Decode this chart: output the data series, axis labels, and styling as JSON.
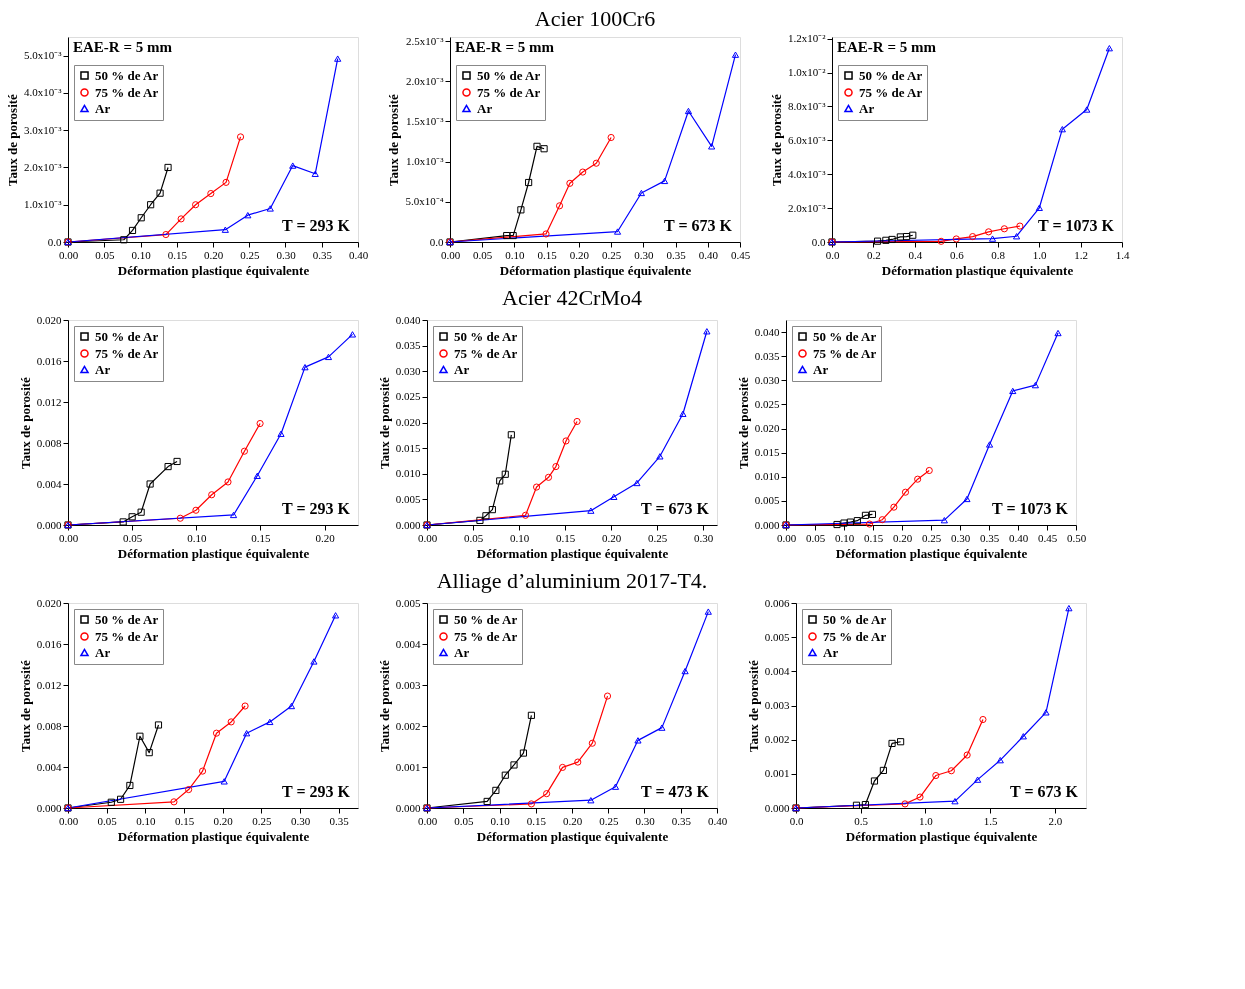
{
  "chart_data": [
    {
      "type": "line",
      "xlabel": "Déformation plastique équivalente",
      "ylabel": "Taux de porosité",
      "legend": "top left",
      "annotations": [
        "EAE-R = 5 mm",
        "T = 293 K"
      ],
      "xlim": [
        0,
        0.4
      ],
      "ylim": [
        0,
        0.0055
      ],
      "xticks": [
        {
          "value": 0,
          "label": "0.00"
        },
        0.05,
        {
          "value": 0.1,
          "label": "0.10"
        },
        0.15,
        {
          "value": 0.2,
          "label": "0.20"
        },
        0.25,
        {
          "value": 0.3,
          "label": "0.30"
        },
        0.35,
        {
          "value": 0.4,
          "label": "0.40"
        }
      ],
      "yticks": [
        {
          "value": 0,
          "label": "0.0"
        },
        {
          "value": 0.001,
          "label": "1.0x10⁻³"
        },
        {
          "value": 0.002,
          "label": "2.0x10⁻³"
        },
        {
          "value": 0.003,
          "label": "3.0x10⁻³"
        },
        {
          "value": 0.004,
          "label": "4.0x10⁻³"
        },
        {
          "value": 0.005,
          "label": "5.0x10⁻³"
        }
      ],
      "series": [
        {
          "name": "50 % de Ar",
          "color": "#000000",
          "marker": "square",
          "x": [
            0,
            0.077,
            0.089,
            0.101,
            0.114,
            0.127,
            0.138
          ],
          "values": [
            0,
            6e-05,
            0.00031,
            0.00065,
            0.001,
            0.00131,
            0.002
          ]
        },
        {
          "name": "75 % de Ar",
          "color": "#ff0000",
          "marker": "circle",
          "x": [
            0,
            0.135,
            0.156,
            0.176,
            0.197,
            0.218,
            0.238
          ],
          "values": [
            0,
            0.0002,
            0.00062,
            0.001,
            0.0013,
            0.0016,
            0.00282
          ]
        },
        {
          "name": "Ar",
          "color": "#0000ff",
          "marker": "triangle",
          "x": [
            0,
            0.217,
            0.248,
            0.279,
            0.31,
            0.341,
            0.372
          ],
          "values": [
            0,
            0.00033,
            0.00072,
            0.0009,
            0.00205,
            0.00183,
            0.00492
          ]
        }
      ]
    },
    {
      "type": "line",
      "title": "Acier 100Cr6",
      "xlabel": "Déformation plastique équivalente",
      "ylabel": "Taux de porosité",
      "legend": "top left",
      "annotations": [
        "EAE-R = 5 mm",
        "T = 673 K"
      ],
      "xlim": [
        0,
        0.45
      ],
      "ylim": [
        0,
        0.00255
      ],
      "xticks": [
        {
          "value": 0,
          "label": "0.00"
        },
        0.05,
        {
          "value": 0.1,
          "label": "0.10"
        },
        0.15,
        {
          "value": 0.2,
          "label": "0.20"
        },
        0.25,
        {
          "value": 0.3,
          "label": "0.30"
        },
        0.35,
        {
          "value": 0.4,
          "label": "0.40"
        },
        0.45
      ],
      "yticks": [
        {
          "value": 0,
          "label": "0.0"
        },
        {
          "value": 0.0005,
          "label": "5.0x10⁻⁴"
        },
        {
          "value": 0.001,
          "label": "1.0x10⁻³"
        },
        {
          "value": 0.0015,
          "label": "1.5x10⁻³"
        },
        {
          "value": 0.002,
          "label": "2.0x10⁻³"
        },
        {
          "value": 0.0025,
          "label": "2.5x10⁻³"
        }
      ],
      "series": [
        {
          "name": "50 % de Ar",
          "color": "#000000",
          "marker": "square",
          "x": [
            0,
            0.088,
            0.098,
            0.11,
            0.122,
            0.135,
            0.146
          ],
          "values": [
            0,
            8e-05,
            8e-05,
            0.0004,
            0.00074,
            0.00119,
            0.00116
          ]
        },
        {
          "name": "75 % de Ar",
          "color": "#ff0000",
          "marker": "circle",
          "x": [
            0,
            0.149,
            0.17,
            0.186,
            0.206,
            0.227,
            0.25
          ],
          "values": [
            0,
            0.0001,
            0.00045,
            0.00073,
            0.00087,
            0.00098,
            0.0013
          ]
        },
        {
          "name": "Ar",
          "color": "#0000ff",
          "marker": "triangle",
          "x": [
            0,
            0.26,
            0.297,
            0.333,
            0.37,
            0.406,
            0.443
          ],
          "values": [
            0,
            0.00013,
            0.00061,
            0.00076,
            0.00163,
            0.00119,
            0.00233
          ]
        }
      ]
    },
    {
      "type": "line",
      "xlabel": "Déformation plastique équivalente",
      "ylabel": "Taux de porosité",
      "legend": "top left",
      "annotations": [
        "EAE-R = 5 mm",
        "T = 1073 K"
      ],
      "xlim": [
        0,
        1.4
      ],
      "ylim": [
        0,
        0.0121
      ],
      "xticks": [
        {
          "value": 0,
          "label": "0.0"
        },
        0.2,
        0.4,
        0.6,
        0.8,
        {
          "value": 1.0,
          "label": "1.0"
        },
        1.2,
        1.4
      ],
      "yticks": [
        {
          "value": 0,
          "label": "0.0"
        },
        {
          "value": 0.002,
          "label": "2.0x10⁻³"
        },
        {
          "value": 0.004,
          "label": "4.0x10⁻³"
        },
        {
          "value": 0.006,
          "label": "6.0x10⁻³"
        },
        {
          "value": 0.008,
          "label": "8.0x10⁻³"
        },
        {
          "value": 0.01,
          "label": "1.0x10⁻²"
        },
        {
          "value": 0.012,
          "label": "1.2x10⁻²"
        }
      ],
      "series": [
        {
          "name": "50 % de Ar",
          "color": "#000000",
          "marker": "square",
          "x": [
            0,
            0.22,
            0.26,
            0.29,
            0.33,
            0.36,
            0.39
          ],
          "values": [
            0,
            5e-05,
            0.0001,
            0.00015,
            0.0003,
            0.00032,
            0.0004
          ]
        },
        {
          "name": "75 % de Ar",
          "color": "#ff0000",
          "marker": "circle",
          "x": [
            0,
            0.527,
            0.6,
            0.679,
            0.756,
            0.832,
            0.907
          ],
          "values": [
            0,
            4e-05,
            0.00018,
            0.00032,
            0.0006,
            0.00078,
            0.00094
          ]
        },
        {
          "name": "Ar",
          "color": "#0000ff",
          "marker": "triangle",
          "x": [
            0,
            0.775,
            0.891,
            1.001,
            1.112,
            1.23,
            1.339
          ],
          "values": [
            0,
            0.0002,
            0.00034,
            0.00202,
            0.00666,
            0.00782,
            0.01144
          ]
        }
      ]
    },
    {
      "type": "line",
      "xlabel": "Déformation plastique équivalente",
      "ylabel": "Taux de porosité",
      "legend": "top left",
      "annotations": [
        "T = 293 K"
      ],
      "xlim": [
        0,
        0.226
      ],
      "ylim": [
        0,
        0.02
      ],
      "xticks": [
        {
          "value": 0,
          "label": "0.00"
        },
        0.05,
        {
          "value": 0.1,
          "label": "0.10"
        },
        0.15,
        {
          "value": 0.2,
          "label": "0.20"
        }
      ],
      "yticks": [
        {
          "value": 0,
          "label": "0.000"
        },
        0.004,
        0.008,
        0.012,
        0.016,
        {
          "value": 0.02,
          "label": "0.020"
        }
      ],
      "series": [
        {
          "name": "50 % de Ar",
          "color": "#000000",
          "marker": "square",
          "x": [
            0,
            0.043,
            0.05,
            0.057,
            0.064,
            0.078,
            0.085
          ],
          "values": [
            0,
            0.0003,
            0.0008,
            0.00125,
            0.004,
            0.0057,
            0.0062
          ]
        },
        {
          "name": "75 % de Ar",
          "color": "#ff0000",
          "marker": "circle",
          "x": [
            0,
            0.0875,
            0.0997,
            0.112,
            0.1247,
            0.1375,
            0.1497
          ],
          "values": [
            0,
            0.00066,
            0.00144,
            0.00295,
            0.0042,
            0.0072,
            0.0099
          ]
        },
        {
          "name": "Ar",
          "color": "#0000ff",
          "marker": "triangle",
          "x": [
            0,
            0.129,
            0.1475,
            0.166,
            0.1847,
            0.203,
            0.2217
          ],
          "values": [
            0,
            0.00098,
            0.0048,
            0.0089,
            0.0154,
            0.0164,
            0.0186
          ]
        }
      ]
    },
    {
      "type": "line",
      "title": "Acier 42CrMo4",
      "xlabel": "Déformation plastique équivalente",
      "ylabel": "Taux de porosité",
      "legend": "top left",
      "annotations": [
        "T = 673 K"
      ],
      "xlim": [
        0,
        0.315
      ],
      "ylim": [
        0,
        0.04
      ],
      "xticks": [
        {
          "value": 0,
          "label": "0.00"
        },
        0.05,
        {
          "value": 0.1,
          "label": "0.10"
        },
        0.15,
        {
          "value": 0.2,
          "label": "0.20"
        },
        0.25,
        {
          "value": 0.3,
          "label": "0.30"
        }
      ],
      "yticks": [
        {
          "value": 0,
          "label": "0.000"
        },
        0.005,
        {
          "value": 0.01,
          "label": "0.010"
        },
        0.015,
        {
          "value": 0.02,
          "label": "0.020"
        },
        0.025,
        {
          "value": 0.03,
          "label": "0.030"
        },
        0.035,
        {
          "value": 0.04,
          "label": "0.040"
        }
      ],
      "series": [
        {
          "name": "50 % de Ar",
          "color": "#000000",
          "marker": "square",
          "x": [
            0,
            0.0575,
            0.064,
            0.071,
            0.079,
            0.085,
            0.0916
          ],
          "values": [
            0,
            0.0009,
            0.0018,
            0.003,
            0.0086,
            0.0099,
            0.0176
          ]
        },
        {
          "name": "75 % de Ar",
          "color": "#ff0000",
          "marker": "circle",
          "x": [
            0,
            0.107,
            0.119,
            0.132,
            0.14,
            0.151,
            0.163
          ],
          "values": [
            0,
            0.0019,
            0.0074,
            0.0093,
            0.0114,
            0.0164,
            0.0202
          ]
        },
        {
          "name": "Ar",
          "color": "#0000ff",
          "marker": "triangle",
          "x": [
            0,
            0.178,
            0.203,
            0.228,
            0.253,
            0.278,
            0.304
          ],
          "values": [
            0,
            0.0028,
            0.0055,
            0.0082,
            0.0134,
            0.0217,
            0.0378
          ]
        }
      ]
    },
    {
      "type": "line",
      "xlabel": "Déformation plastique équivalente",
      "ylabel": "Taux de porosité",
      "legend": "top left",
      "annotations": [
        "T = 1073 K"
      ],
      "xlim": [
        0,
        0.5
      ],
      "ylim": [
        0,
        0.0425
      ],
      "xticks": [
        {
          "value": 0,
          "label": "0.00"
        },
        0.05,
        {
          "value": 0.1,
          "label": "0.10"
        },
        0.15,
        {
          "value": 0.2,
          "label": "0.20"
        },
        0.25,
        {
          "value": 0.3,
          "label": "0.30"
        },
        0.35,
        {
          "value": 0.4,
          "label": "0.40"
        },
        0.45,
        {
          "value": 0.5,
          "label": "0.50"
        }
      ],
      "yticks": [
        {
          "value": 0,
          "label": "0.000"
        },
        0.005,
        {
          "value": 0.01,
          "label": "0.010"
        },
        0.015,
        {
          "value": 0.02,
          "label": "0.020"
        },
        0.025,
        {
          "value": 0.03,
          "label": "0.030"
        },
        0.035,
        {
          "value": 0.04,
          "label": "0.040"
        }
      ],
      "series": [
        {
          "name": "50 % de Ar",
          "color": "#000000",
          "marker": "square",
          "x": [
            0,
            0.088,
            0.1,
            0.111,
            0.123,
            0.137,
            0.149
          ],
          "values": [
            0,
            0.0001,
            0.0004,
            0.0006,
            0.0009,
            0.002,
            0.0022
          ]
        },
        {
          "name": "75 % de Ar",
          "color": "#ff0000",
          "marker": "circle",
          "x": [
            0,
            0.144,
            0.166,
            0.186,
            0.206,
            0.227,
            0.247
          ],
          "values": [
            0,
            0.0002,
            0.0011,
            0.0037,
            0.0068,
            0.0095,
            0.0113
          ]
        },
        {
          "name": "Ar",
          "color": "#0000ff",
          "marker": "triangle",
          "x": [
            0,
            0.273,
            0.312,
            0.351,
            0.391,
            0.43,
            0.469
          ],
          "values": [
            0,
            0.001,
            0.0054,
            0.0167,
            0.0278,
            0.029,
            0.0398
          ]
        }
      ]
    },
    {
      "type": "line",
      "xlabel": "Déformation plastique équivalente",
      "ylabel": "Taux de porosité",
      "legend": "top left",
      "annotations": [
        "T = 293 K"
      ],
      "xlim": [
        0,
        0.375
      ],
      "ylim": [
        0,
        0.02
      ],
      "xticks": [
        {
          "value": 0,
          "label": "0.00"
        },
        0.05,
        {
          "value": 0.1,
          "label": "0.10"
        },
        0.15,
        {
          "value": 0.2,
          "label": "0.20"
        },
        0.25,
        {
          "value": 0.3,
          "label": "0.30"
        },
        0.35
      ],
      "yticks": [
        {
          "value": 0,
          "label": "0.000"
        },
        0.004,
        0.008,
        0.012,
        0.016,
        {
          "value": 0.02,
          "label": "0.020"
        }
      ],
      "series": [
        {
          "name": "50 % de Ar",
          "color": "#000000",
          "marker": "square",
          "x": [
            0,
            0.056,
            0.068,
            0.08,
            0.093,
            0.105,
            0.117
          ],
          "values": [
            0,
            0.00056,
            0.00085,
            0.0022,
            0.007,
            0.0054,
            0.0081
          ]
        },
        {
          "name": "75 % de Ar",
          "color": "#ff0000",
          "marker": "circle",
          "x": [
            0,
            0.137,
            0.156,
            0.174,
            0.192,
            0.211,
            0.229
          ],
          "values": [
            0,
            0.0006,
            0.0018,
            0.0036,
            0.0073,
            0.0084,
            0.00995
          ]
        },
        {
          "name": "Ar",
          "color": "#0000ff",
          "marker": "triangle",
          "x": [
            0,
            0.202,
            0.231,
            0.261,
            0.289,
            0.318,
            0.346
          ],
          "values": [
            0,
            0.0026,
            0.0073,
            0.0084,
            0.00995,
            0.0143,
            0.0188
          ]
        }
      ]
    },
    {
      "type": "line",
      "xlabel": "Déformation plastique équivalente",
      "ylabel": "Taux de porosité",
      "legend": "top left",
      "title": "Alliage d’aluminium 2017-T4.",
      "annotations": [
        "T = 473 K"
      ],
      "xlim": [
        0,
        0.4
      ],
      "ylim": [
        0,
        0.005
      ],
      "xticks": [
        {
          "value": 0,
          "label": "0.00"
        },
        0.05,
        {
          "value": 0.1,
          "label": "0.10"
        },
        0.15,
        {
          "value": 0.2,
          "label": "0.20"
        },
        0.25,
        {
          "value": 0.3,
          "label": "0.30"
        },
        0.35,
        {
          "value": 0.4,
          "label": "0.40"
        }
      ],
      "yticks": [
        {
          "value": 0,
          "label": "0.000"
        },
        0.001,
        0.002,
        0.003,
        0.004,
        0.005
      ],
      "series": [
        {
          "name": "50 % de Ar",
          "color": "#000000",
          "marker": "square",
          "x": [
            0,
            0.083,
            0.095,
            0.108,
            0.12,
            0.133,
            0.144
          ],
          "values": [
            0,
            0.00016,
            0.00043,
            0.0008,
            0.00105,
            0.00134,
            0.00226
          ]
        },
        {
          "name": "75 % de Ar",
          "color": "#ff0000",
          "marker": "circle",
          "x": [
            0,
            0.144,
            0.165,
            0.187,
            0.208,
            0.228,
            0.249
          ],
          "values": [
            0,
            0.0001,
            0.00035,
            0.00099,
            0.00112,
            0.00158,
            0.00273
          ]
        },
        {
          "name": "Ar",
          "color": "#0000ff",
          "marker": "triangle",
          "x": [
            0,
            0.226,
            0.26,
            0.291,
            0.324,
            0.356,
            0.388
          ],
          "values": [
            0,
            0.00019,
            0.00052,
            0.00165,
            0.00196,
            0.00334,
            0.00479
          ]
        }
      ]
    },
    {
      "type": "line",
      "xlabel": "Déformation plastique équivalente",
      "ylabel": "Taux de porosité",
      "legend": "top left",
      "annotations": [
        "T = 673 K"
      ],
      "xlim": [
        0,
        2.24
      ],
      "ylim": [
        0,
        0.006
      ],
      "xticks": [
        {
          "value": 0,
          "label": "0.0"
        },
        0.5,
        {
          "value": 1.0,
          "label": "1.0"
        },
        1.5,
        {
          "value": 2.0,
          "label": "2.0"
        }
      ],
      "yticks": [
        {
          "value": 0,
          "label": "0.000"
        },
        0.001,
        0.002,
        0.003,
        0.004,
        0.005,
        0.006
      ],
      "series": [
        {
          "name": "50 % de Ar",
          "color": "#000000",
          "marker": "square",
          "x": [
            0,
            0.467,
            0.536,
            0.606,
            0.675,
            0.742,
            0.808
          ],
          "values": [
            0,
            8e-05,
            0.0001,
            0.00079,
            0.0011,
            0.00189,
            0.00194
          ]
        },
        {
          "name": "75 % de Ar",
          "color": "#ff0000",
          "marker": "circle",
          "x": [
            0,
            0.842,
            0.958,
            1.08,
            1.2,
            1.322,
            1.444
          ],
          "values": [
            0,
            0.00012,
            0.00032,
            0.00095,
            0.00109,
            0.00155,
            0.00259
          ]
        },
        {
          "name": "Ar",
          "color": "#0000ff",
          "marker": "triangle",
          "x": [
            0,
            1.228,
            1.403,
            1.578,
            1.756,
            1.931,
            2.108
          ],
          "values": [
            0,
            0.0002,
            0.00083,
            0.0014,
            0.0021,
            0.0028,
            0.00585
          ]
        }
      ]
    }
  ]
}
